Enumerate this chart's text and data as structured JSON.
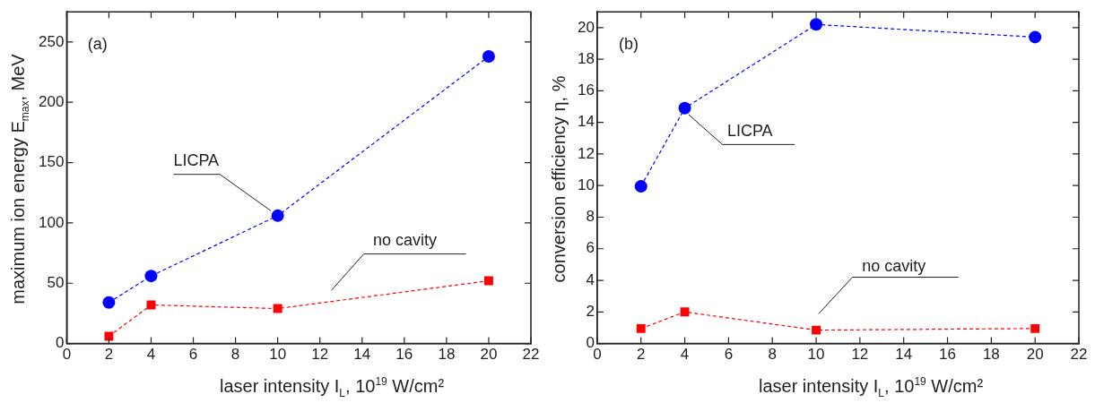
{
  "chart_data": [
    {
      "type": "line",
      "xlabel": "laser intensity I$_{L}$, 10$^{19}$ W/cm²",
      "ylabel": "maximum ion energy E$_{max}$, MeV",
      "annotations": [
        "(a)"
      ],
      "x": [
        2,
        4,
        10,
        20
      ],
      "xlim": [
        0,
        22
      ],
      "xticks": [
        0,
        2,
        4,
        6,
        8,
        10,
        12,
        14,
        16,
        18,
        20,
        22
      ],
      "ylim": [
        0,
        275
      ],
      "yticks": [
        0,
        50,
        100,
        150,
        200,
        250
      ],
      "grid": false,
      "legend": false,
      "line_style": "dashed",
      "series": [
        {
          "name": "LICPA",
          "color": "#0000ff",
          "marker": "circle",
          "values": [
            34,
            56,
            106,
            238
          ]
        },
        {
          "name": "no cavity",
          "color": "#ff0000",
          "marker": "square",
          "values": [
            6,
            32,
            29,
            52
          ]
        }
      ]
    },
    {
      "type": "line",
      "xlabel": "laser intensity I$_{L}$, 10$^{19}$ W/cm²",
      "ylabel": "conversion efficiency η, %",
      "annotations": [
        "(b)"
      ],
      "x": [
        2,
        4,
        10,
        20
      ],
      "xlim": [
        0,
        22
      ],
      "xticks": [
        0,
        2,
        4,
        6,
        8,
        10,
        12,
        14,
        16,
        18,
        20,
        22
      ],
      "ylim": [
        0,
        21
      ],
      "yticks": [
        0,
        2,
        4,
        6,
        8,
        10,
        12,
        14,
        16,
        18,
        20
      ],
      "grid": false,
      "legend": false,
      "line_style": "dashed",
      "series": [
        {
          "name": "LICPA",
          "color": "#0000ff",
          "marker": "circle",
          "values": [
            9.95,
            14.9,
            20.2,
            19.4
          ]
        },
        {
          "name": "no cavity",
          "color": "#ff0000",
          "marker": "square",
          "values": [
            0.95,
            2.0,
            0.85,
            0.95
          ]
        }
      ]
    }
  ]
}
